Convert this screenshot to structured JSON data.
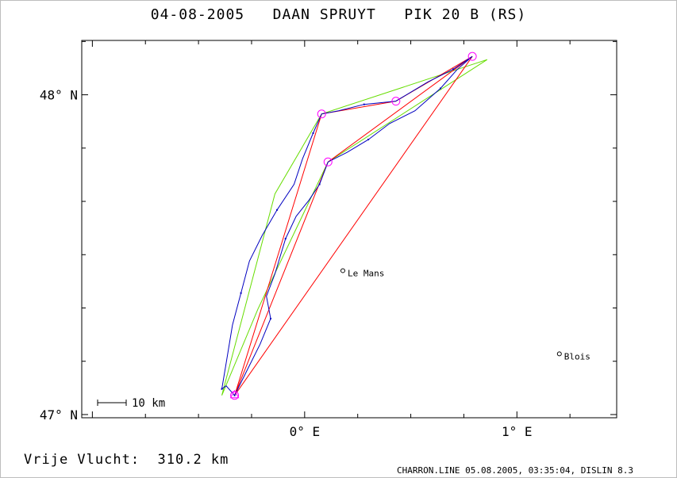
{
  "title": "04-08-2005   DAAN SPRUYT   PIK 20 B (RS)",
  "footer": {
    "distance": "Vrije Vlucht:  310.2 km",
    "credit": "CHARRON.LINE 05.08.2005, 03:35:04, DISLIN 8.3"
  },
  "colors": {
    "track": "#0000c0",
    "task": "#ff0000",
    "alt_task": "#66dd00",
    "turnpoint": "#ff00ff",
    "axis": "#000000"
  },
  "chart_data": {
    "type": "map",
    "xlim": [
      -1.05,
      1.47
    ],
    "ylim": [
      46.99,
      48.17
    ],
    "x_ticks": [
      {
        "value": 0,
        "label": "0° E"
      },
      {
        "value": 1,
        "label": "1° E"
      }
    ],
    "y_ticks": [
      {
        "value": 48,
        "label": "48° N"
      },
      {
        "value": 47,
        "label": "47° N"
      }
    ],
    "scale_bar_label": "10 km",
    "cities": [
      {
        "name": "Le Mans",
        "lon": 0.18,
        "lat": 47.45
      },
      {
        "name": "Blois",
        "lon": 1.2,
        "lat": 47.19
      }
    ],
    "turnpoints": [
      {
        "lon": -0.33,
        "lat": 47.06
      },
      {
        "lon": 0.08,
        "lat": 47.94
      },
      {
        "lon": 0.43,
        "lat": 47.98
      },
      {
        "lon": 0.79,
        "lat": 48.12
      },
      {
        "lon": 0.11,
        "lat": 47.79
      }
    ],
    "start_marker": {
      "lon": -0.33,
      "lat": 47.06
    },
    "task_route": {
      "name": "",
      "points": [
        [
          -0.33,
          47.06
        ],
        [
          0.08,
          47.94
        ],
        [
          0.43,
          47.98
        ],
        [
          0.79,
          48.12
        ],
        [
          0.11,
          47.79
        ],
        [
          -0.33,
          47.06
        ]
      ]
    },
    "task_route_extra": {
      "name": "",
      "points": [
        [
          -0.33,
          47.06
        ],
        [
          0.79,
          48.12
        ]
      ]
    },
    "alt_route": {
      "name": "",
      "points": [
        [
          -0.39,
          47.06
        ],
        [
          -0.14,
          47.69
        ],
        [
          0.08,
          47.94
        ],
        [
          0.86,
          48.11
        ],
        [
          0.11,
          47.79
        ],
        [
          -0.22,
          47.33
        ],
        [
          -0.39,
          47.06
        ]
      ]
    },
    "track": {
      "name": "",
      "points": [
        [
          -0.39,
          47.08
        ],
        [
          -0.37,
          47.16
        ],
        [
          -0.34,
          47.28
        ],
        [
          -0.3,
          47.38
        ],
        [
          -0.26,
          47.48
        ],
        [
          -0.2,
          47.56
        ],
        [
          -0.13,
          47.64
        ],
        [
          -0.05,
          47.72
        ],
        [
          -0.01,
          47.8
        ],
        [
          0.04,
          47.88
        ],
        [
          0.08,
          47.94
        ],
        [
          0.16,
          47.95
        ],
        [
          0.28,
          47.97
        ],
        [
          0.43,
          47.98
        ],
        [
          0.58,
          48.04
        ],
        [
          0.7,
          48.08
        ],
        [
          0.79,
          48.12
        ],
        [
          0.72,
          48.08
        ],
        [
          0.64,
          48.02
        ],
        [
          0.52,
          47.95
        ],
        [
          0.4,
          47.91
        ],
        [
          0.3,
          47.86
        ],
        [
          0.2,
          47.82
        ],
        [
          0.11,
          47.79
        ],
        [
          0.07,
          47.72
        ],
        [
          0.02,
          47.67
        ],
        [
          -0.04,
          47.62
        ],
        [
          -0.09,
          47.55
        ],
        [
          -0.14,
          47.44
        ],
        [
          -0.18,
          47.37
        ],
        [
          -0.16,
          47.3
        ],
        [
          -0.21,
          47.22
        ],
        [
          -0.27,
          47.14
        ],
        [
          -0.33,
          47.06
        ],
        [
          -0.37,
          47.09
        ],
        [
          -0.39,
          47.08
        ]
      ]
    }
  }
}
